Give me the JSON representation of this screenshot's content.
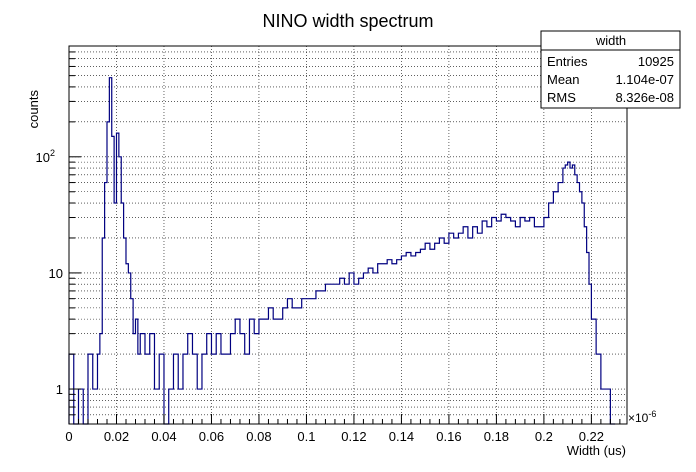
{
  "chart_data": {
    "type": "histogram",
    "title": "NINO width spectrum",
    "xlabel": "Width (us)",
    "ylabel": "counts",
    "x_exponent_label": "×10",
    "x_exponent_power": "-6",
    "xlim": [
      0,
      0.235
    ],
    "ylim": [
      0.5,
      900
    ],
    "y_scale": "log",
    "grid": true,
    "x_ticks": [
      {
        "value": 0,
        "label": "0"
      },
      {
        "value": 0.02,
        "label": "0.02"
      },
      {
        "value": 0.04,
        "label": "0.04"
      },
      {
        "value": 0.06,
        "label": "0.06"
      },
      {
        "value": 0.08,
        "label": "0.08"
      },
      {
        "value": 0.1,
        "label": "0.1"
      },
      {
        "value": 0.12,
        "label": "0.12"
      },
      {
        "value": 0.14,
        "label": "0.14"
      },
      {
        "value": 0.16,
        "label": "0.16"
      },
      {
        "value": 0.18,
        "label": "0.18"
      },
      {
        "value": 0.2,
        "label": "0.2"
      },
      {
        "value": 0.22,
        "label": "0.22"
      }
    ],
    "y_ticks": [
      {
        "value": 1,
        "label": "1"
      },
      {
        "value": 10,
        "label": "10"
      },
      {
        "value": 100,
        "label": "10",
        "sup": "2"
      }
    ],
    "series": [
      {
        "color": "#000080",
        "x": [
          0.0,
          0.002,
          0.004,
          0.006,
          0.008,
          0.01,
          0.012,
          0.013,
          0.014,
          0.015,
          0.016,
          0.017,
          0.018,
          0.019,
          0.02,
          0.021,
          0.022,
          0.023,
          0.024,
          0.025,
          0.026,
          0.027,
          0.028,
          0.029,
          0.03,
          0.032,
          0.034,
          0.036,
          0.038,
          0.04,
          0.042,
          0.044,
          0.046,
          0.048,
          0.05,
          0.052,
          0.054,
          0.056,
          0.058,
          0.06,
          0.062,
          0.064,
          0.066,
          0.068,
          0.07,
          0.072,
          0.074,
          0.076,
          0.078,
          0.08,
          0.082,
          0.084,
          0.086,
          0.088,
          0.09,
          0.092,
          0.094,
          0.096,
          0.098,
          0.1,
          0.102,
          0.104,
          0.106,
          0.108,
          0.11,
          0.112,
          0.114,
          0.116,
          0.118,
          0.12,
          0.122,
          0.124,
          0.126,
          0.128,
          0.13,
          0.132,
          0.134,
          0.136,
          0.138,
          0.14,
          0.142,
          0.144,
          0.146,
          0.148,
          0.15,
          0.152,
          0.154,
          0.156,
          0.158,
          0.16,
          0.162,
          0.164,
          0.166,
          0.168,
          0.17,
          0.172,
          0.174,
          0.176,
          0.178,
          0.18,
          0.182,
          0.184,
          0.186,
          0.188,
          0.19,
          0.192,
          0.194,
          0.196,
          0.198,
          0.2,
          0.202,
          0.204,
          0.206,
          0.208,
          0.209,
          0.21,
          0.211,
          0.212,
          0.213,
          0.214,
          0.215,
          0.216,
          0.217,
          0.218,
          0.219,
          0.22,
          0.222,
          0.224,
          0.226,
          0.228
        ],
        "values": [
          2,
          0.5,
          1,
          0.5,
          2,
          1,
          2,
          3,
          20,
          60,
          200,
          480,
          150,
          40,
          160,
          100,
          40,
          20,
          12,
          10,
          6,
          3,
          4,
          2,
          3,
          2,
          3,
          1,
          2,
          0.5,
          1,
          2,
          1,
          2,
          3,
          2,
          1,
          2,
          3,
          2,
          3,
          2,
          2,
          3,
          4,
          3,
          2,
          4,
          3,
          4,
          4,
          5,
          4,
          4,
          5,
          6,
          5,
          5,
          6,
          6,
          6,
          7,
          7,
          8,
          8,
          8,
          9,
          8,
          10,
          8,
          9,
          10,
          11,
          10,
          12,
          12,
          13,
          12,
          13,
          14,
          15,
          14,
          15,
          16,
          18,
          16,
          18,
          20,
          18,
          22,
          20,
          22,
          25,
          20,
          25,
          22,
          28,
          25,
          30,
          28,
          32,
          30,
          28,
          25,
          30,
          28,
          30,
          25,
          25,
          30,
          40,
          50,
          60,
          80,
          85,
          90,
          80,
          85,
          70,
          60,
          50,
          40,
          25,
          15,
          8,
          4,
          2,
          1,
          1,
          0.5
        ]
      }
    ]
  },
  "stats_box": {
    "title": "width",
    "rows": [
      {
        "label": "Entries",
        "value": "10925"
      },
      {
        "label": "Mean",
        "value": "1.104e-07"
      },
      {
        "label": "RMS",
        "value": "8.326e-08"
      }
    ]
  }
}
